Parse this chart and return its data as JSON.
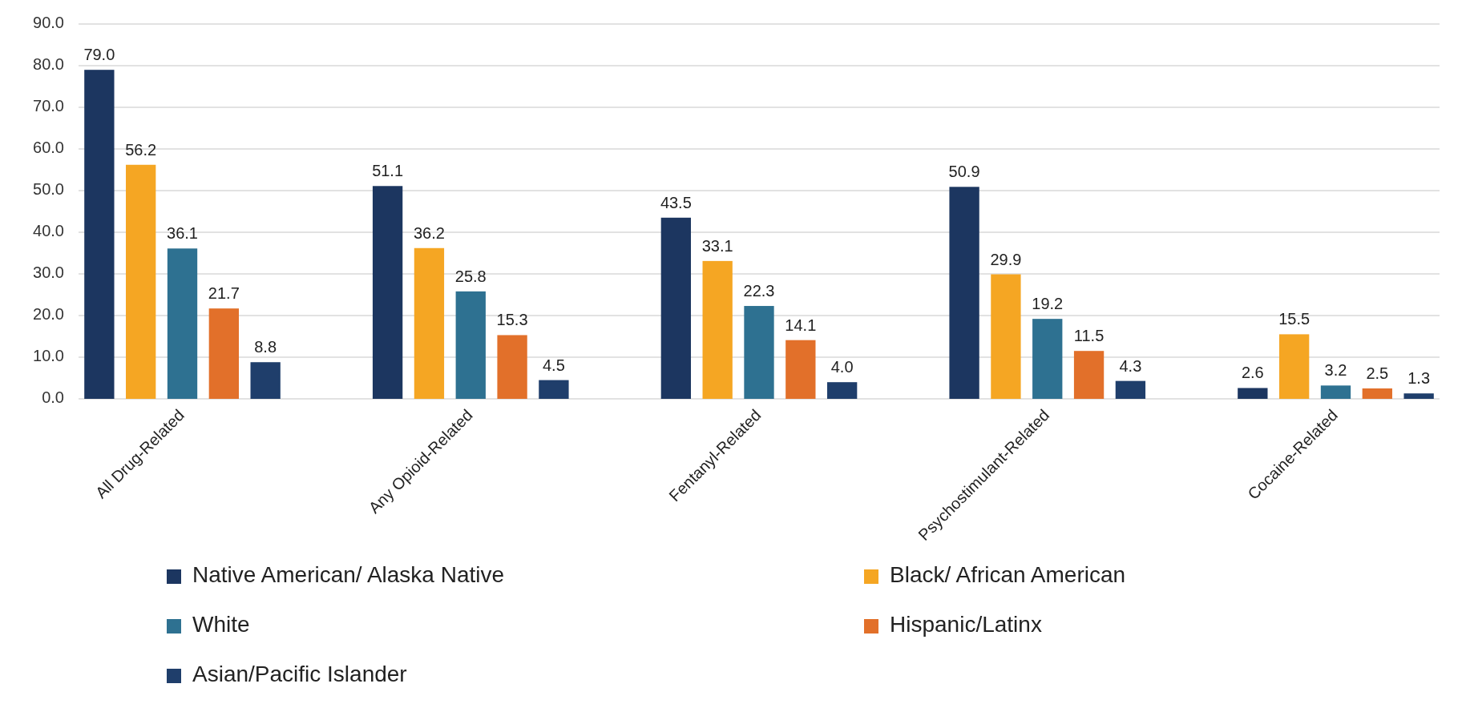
{
  "chart_data": {
    "type": "bar",
    "categories": [
      "All Drug-Related",
      "Any Opioid-Related",
      "Fentanyl-Related",
      "Psychostimulant-Related",
      "Cocaine-Related"
    ],
    "series": [
      {
        "name": "Native American/ Alaska Native",
        "color": "#1c3660",
        "values": [
          79.0,
          51.1,
          43.5,
          50.9,
          2.6
        ],
        "value_labels": [
          "79.0",
          "51.1",
          "43.5",
          "50.9",
          "2.6"
        ]
      },
      {
        "name": "Black/ African American",
        "color": "#f5a623",
        "values": [
          56.2,
          36.2,
          33.1,
          29.9,
          15.5
        ],
        "value_labels": [
          "56.2",
          "36.2",
          "33.1",
          "29.9",
          "15.5"
        ]
      },
      {
        "name": "White",
        "color": "#2e7191",
        "values": [
          36.1,
          25.8,
          22.3,
          19.2,
          3.2
        ],
        "value_labels": [
          "36.1",
          "25.8",
          "22.3",
          "19.2",
          "3.2"
        ]
      },
      {
        "name": "Hispanic/Latinx",
        "color": "#e2702a",
        "values": [
          21.7,
          15.3,
          14.1,
          11.5,
          2.5
        ],
        "value_labels": [
          "21.7",
          "15.3",
          "14.1",
          "11.5",
          "2.5"
        ]
      },
      {
        "name": "Asian/Pacific Islander",
        "color": "#1f3e6b",
        "values": [
          8.8,
          4.5,
          4.0,
          4.3,
          1.3
        ],
        "value_labels": [
          "8.8",
          "4.5",
          "4.0",
          "4.3",
          "1.3"
        ]
      }
    ],
    "ylim": [
      0,
      90
    ],
    "yticks": [
      {
        "value": 0,
        "label": "0.0"
      },
      {
        "value": 10,
        "label": "10.0"
      },
      {
        "value": 20,
        "label": "20.0"
      },
      {
        "value": 30,
        "label": "30.0"
      },
      {
        "value": 40,
        "label": "40.0"
      },
      {
        "value": 50,
        "label": "50.0"
      },
      {
        "value": 60,
        "label": "60.0"
      },
      {
        "value": 70,
        "label": "70.0"
      },
      {
        "value": 80,
        "label": "80.0"
      },
      {
        "value": 90,
        "label": "90.0"
      }
    ],
    "grid": "y",
    "legend": "bottom"
  }
}
